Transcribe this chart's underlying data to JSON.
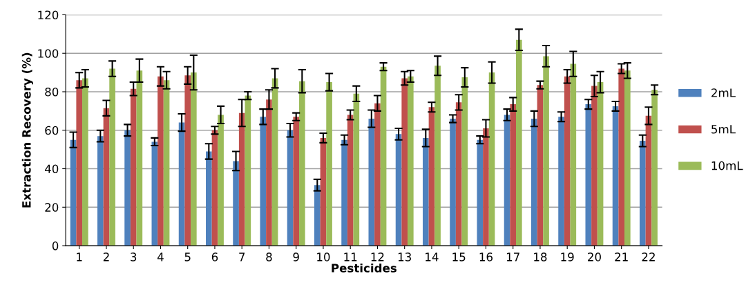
{
  "chart_data": {
    "type": "bar",
    "xlabel": "Pesticides",
    "ylabel": "Extraction Recovery (%)",
    "categories": [
      "1",
      "2",
      "3",
      "4",
      "5",
      "6",
      "7",
      "8",
      "9",
      "10",
      "11",
      "12",
      "13",
      "14",
      "15",
      "16",
      "17",
      "18",
      "19",
      "20",
      "21",
      "22"
    ],
    "series": [
      {
        "name": "2mL",
        "color": "#4f81bd",
        "values": [
          55,
          57,
          60,
          54,
          64,
          49,
          44,
          67,
          60,
          31.5,
          55,
          66,
          58,
          56,
          66,
          55,
          68,
          66,
          67,
          73.5,
          72.5,
          54.5
        ],
        "errors": [
          4,
          3,
          3,
          2,
          4.5,
          4,
          5,
          4,
          3.5,
          3,
          2.5,
          4.5,
          3,
          4.5,
          2,
          2,
          3,
          4,
          2.5,
          2.5,
          2.5,
          3
        ]
      },
      {
        "name": "5mL",
        "color": "#c0504d",
        "values": [
          86,
          71.5,
          81.5,
          88,
          88.5,
          60,
          69,
          76,
          67,
          56,
          68,
          74,
          87,
          72,
          74.5,
          61,
          73.5,
          83.5,
          88,
          83,
          92,
          67.5
        ],
        "errors": [
          4,
          4,
          3.5,
          5,
          4.5,
          2,
          7,
          5,
          2,
          2.5,
          2.5,
          4,
          3.5,
          2.5,
          4,
          4.5,
          3.5,
          2,
          3.5,
          5.5,
          2.5,
          4.5
        ]
      },
      {
        "name": "10mL",
        "color": "#9bbb59",
        "values": [
          87,
          92,
          91,
          86,
          90,
          68,
          78,
          87,
          85.5,
          85,
          79,
          93,
          88,
          93.5,
          87.5,
          90,
          107,
          98.5,
          94.5,
          85,
          91,
          81
        ],
        "errors": [
          4.5,
          4,
          6,
          4.5,
          9,
          4.5,
          2,
          5,
          6,
          4.5,
          4,
          2,
          3,
          5,
          5,
          5.5,
          5.5,
          5.5,
          6.5,
          5.5,
          4,
          2.5
        ]
      }
    ],
    "ylim": [
      0,
      120
    ],
    "yticks": [
      0,
      20,
      40,
      60,
      80,
      100,
      120
    ],
    "grid": "y",
    "legend": "right"
  }
}
